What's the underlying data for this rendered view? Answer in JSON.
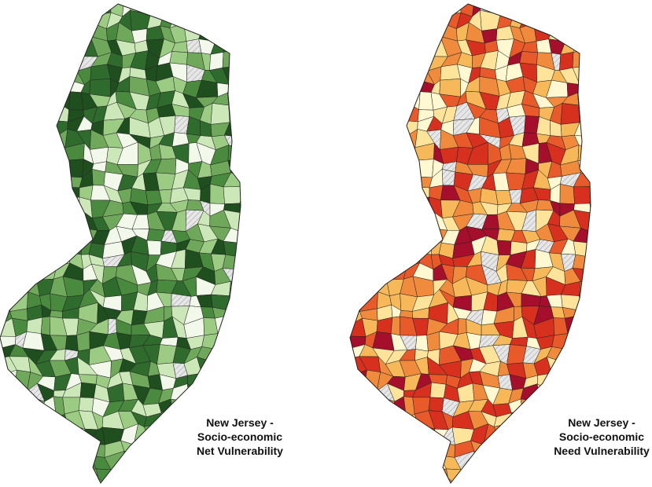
{
  "maps": [
    {
      "title_lines": [
        "New Jersey -",
        "Socio-economic",
        "Net Vulnerability"
      ],
      "colors": [
        "#1f4f1f",
        "#2f6b2c",
        "#4a8a3f",
        "#6fa85a",
        "#9ccb84",
        "#cde8b8",
        "#f3f9ea"
      ]
    },
    {
      "title_lines": [
        "New Jersey -",
        "Socio-economic",
        "Need Vulnerability"
      ],
      "colors": [
        "#a50f2b",
        "#d7301f",
        "#e85a2a",
        "#f08a3c",
        "#f7b85a",
        "#fde49a",
        "#fff8d0"
      ]
    }
  ]
}
